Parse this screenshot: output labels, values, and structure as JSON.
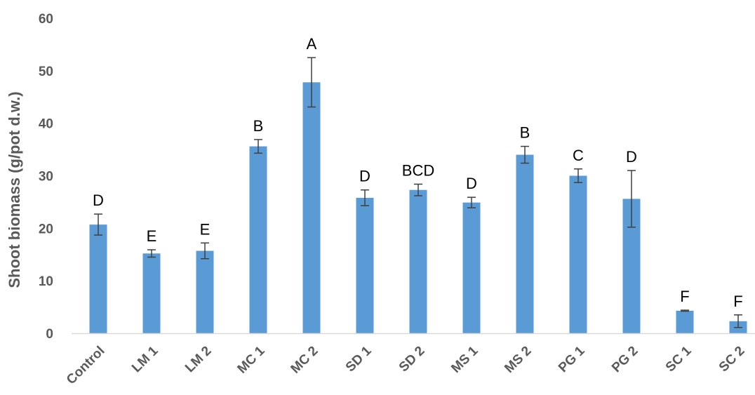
{
  "chart_data": {
    "type": "bar",
    "title": "",
    "xlabel": "",
    "ylabel": "Shoot biomass (g/pot d.w.)",
    "ylim": [
      0,
      60
    ],
    "yticks": [
      0,
      10,
      20,
      30,
      40,
      50,
      60
    ],
    "grid": false,
    "categories": [
      "Control",
      "LM 1",
      "LM 2",
      "MC 1",
      "MC 2",
      "SD 1",
      "SD 2",
      "MS 1",
      "MS 2",
      "PG 1",
      "PG 2",
      "SC 1",
      "SC 2"
    ],
    "series": [
      {
        "values": [
          20.7,
          15.2,
          15.7,
          35.6,
          47.8,
          25.8,
          27.3,
          24.9,
          34.0,
          30.0,
          25.6,
          4.3,
          2.3
        ],
        "errors": [
          2.0,
          0.7,
          1.5,
          1.3,
          4.7,
          1.5,
          1.1,
          1.0,
          1.6,
          1.3,
          5.4,
          0.1,
          1.2
        ],
        "significance": [
          "D",
          "E",
          "E",
          "B",
          "A",
          "D",
          "BCD",
          "D",
          "B",
          "C",
          "D",
          "F",
          "F"
        ]
      }
    ],
    "colors": {
      "bar": "#5B9BD5",
      "axis": "#D9D9D9",
      "error": "#404040"
    }
  }
}
